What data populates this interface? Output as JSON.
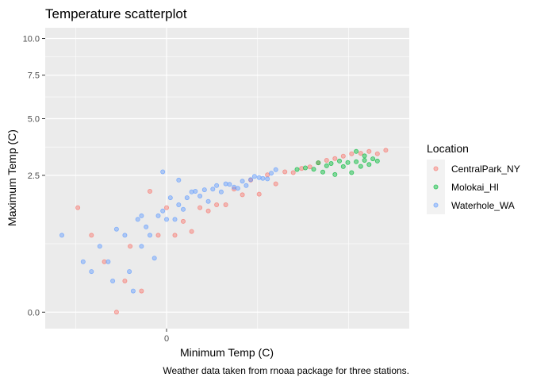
{
  "chart_data": {
    "type": "scatter",
    "title": "Temperature scatterplot",
    "xlabel": "Minimum Temp (C)",
    "ylabel": "Maximum Temp (C)",
    "caption": "Weather data taken from rnoaa package for three stations.",
    "x_ticks": [
      "0"
    ],
    "y_ticks": [
      "0.0",
      "2.5",
      "5.0",
      "7.5",
      "10.0"
    ],
    "xlim": [
      -16,
      32
    ],
    "ylim": [
      -0.5,
      10.8
    ],
    "y_scale": "sqrt",
    "grid": true,
    "legend": {
      "title": "Location",
      "position": "right",
      "entries": [
        "CentralPark_NY",
        "Molokai_HI",
        "Waterhole_WA"
      ]
    },
    "colors": {
      "CentralPark_NY": "#f8766d",
      "Molokai_HI": "#00ba38",
      "Waterhole_WA": "#619cff",
      "panel_background": "#ebebeb",
      "grid": "#ffffff"
    },
    "series": [
      {
        "name": "CentralPark_NY",
        "points": [
          [
            -11.7,
            1.46
          ],
          [
            -9.9,
            0.79
          ],
          [
            -8.2,
            0.34
          ],
          [
            -6.6,
            0.0
          ],
          [
            -5.5,
            0.13
          ],
          [
            -4.8,
            0.58
          ],
          [
            -3.3,
            0.06
          ],
          [
            -2.2,
            1.95
          ],
          [
            -1.1,
            0.79
          ],
          [
            0.0,
            1.46
          ],
          [
            1.1,
            0.79
          ],
          [
            2.2,
            1.1
          ],
          [
            3.3,
            0.87
          ],
          [
            4.4,
            1.46
          ],
          [
            5.5,
            1.37
          ],
          [
            6.6,
            1.54
          ],
          [
            7.8,
            1.54
          ],
          [
            8.9,
            2.02
          ],
          [
            10.0,
            1.84
          ],
          [
            11.1,
            2.33
          ],
          [
            12.2,
            1.86
          ],
          [
            13.3,
            2.52
          ],
          [
            14.4,
            2.2
          ],
          [
            15.6,
            2.63
          ],
          [
            16.7,
            2.6
          ],
          [
            17.8,
            2.76
          ],
          [
            18.9,
            2.82
          ],
          [
            20.0,
            2.98
          ],
          [
            21.1,
            3.08
          ],
          [
            22.2,
            3.15
          ],
          [
            23.3,
            3.25
          ],
          [
            24.4,
            3.35
          ],
          [
            25.6,
            3.37
          ],
          [
            26.7,
            3.45
          ],
          [
            27.8,
            3.35
          ],
          [
            28.9,
            3.5
          ]
        ]
      },
      {
        "name": "Molokai_HI",
        "points": [
          [
            17.2,
            2.72
          ],
          [
            18.3,
            2.78
          ],
          [
            19.4,
            2.73
          ],
          [
            20.0,
            2.98
          ],
          [
            20.6,
            2.62
          ],
          [
            21.1,
            2.86
          ],
          [
            21.7,
            2.95
          ],
          [
            22.2,
            2.53
          ],
          [
            22.8,
            3.05
          ],
          [
            23.3,
            2.83
          ],
          [
            23.9,
            2.99
          ],
          [
            24.4,
            2.6
          ],
          [
            25.0,
            3.02
          ],
          [
            25.6,
            2.84
          ],
          [
            26.1,
            3.08
          ],
          [
            26.7,
            2.91
          ],
          [
            27.2,
            3.14
          ],
          [
            27.8,
            3.05
          ],
          [
            25.0,
            3.45
          ],
          [
            26.1,
            3.26
          ]
        ]
      },
      {
        "name": "Waterhole_WA",
        "points": [
          [
            -13.8,
            0.79
          ],
          [
            -11.0,
            0.34
          ],
          [
            -9.9,
            0.22
          ],
          [
            -8.8,
            0.58
          ],
          [
            -7.7,
            0.34
          ],
          [
            -7.1,
            0.13
          ],
          [
            -6.6,
            0.92
          ],
          [
            -5.5,
            0.79
          ],
          [
            -4.9,
            0.22
          ],
          [
            -4.4,
            0.06
          ],
          [
            -3.8,
            1.15
          ],
          [
            -3.3,
            0.58
          ],
          [
            -2.7,
            0.97
          ],
          [
            -2.2,
            0.79
          ],
          [
            -1.6,
            0.39
          ],
          [
            -1.1,
            1.24
          ],
          [
            -0.5,
            1.37
          ],
          [
            0.0,
            1.15
          ],
          [
            0.5,
            1.75
          ],
          [
            1.1,
            1.15
          ],
          [
            1.6,
            1.54
          ],
          [
            2.2,
            1.41
          ],
          [
            2.7,
            1.75
          ],
          [
            3.3,
            1.93
          ],
          [
            3.8,
            1.95
          ],
          [
            4.4,
            1.8
          ],
          [
            5.0,
            2.0
          ],
          [
            5.5,
            1.64
          ],
          [
            6.1,
            2.02
          ],
          [
            6.6,
            2.14
          ],
          [
            7.2,
            1.93
          ],
          [
            7.8,
            2.2
          ],
          [
            8.3,
            2.18
          ],
          [
            8.9,
            2.09
          ],
          [
            9.4,
            2.05
          ],
          [
            10.0,
            2.29
          ],
          [
            10.5,
            2.14
          ],
          [
            11.1,
            2.35
          ],
          [
            11.6,
            2.46
          ],
          [
            12.2,
            2.42
          ],
          [
            12.7,
            2.39
          ],
          [
            13.3,
            2.37
          ],
          [
            13.8,
            2.58
          ],
          [
            14.4,
            2.71
          ],
          [
            -0.5,
            2.63
          ],
          [
            -3.3,
            1.24
          ],
          [
            1.6,
            2.33
          ]
        ]
      }
    ]
  }
}
